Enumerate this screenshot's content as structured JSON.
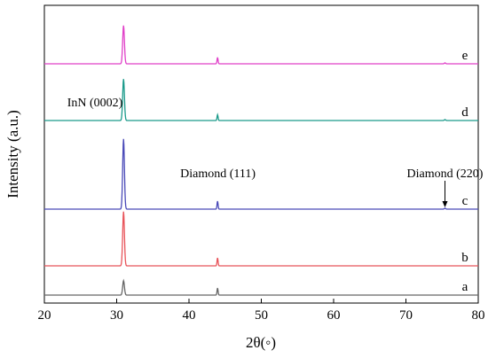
{
  "chart_data": {
    "type": "line",
    "title": "",
    "xlabel": "2θ(◦)",
    "ylabel": "Intensity (a.u.)",
    "xlim": [
      20,
      80
    ],
    "xticks": [
      20,
      30,
      40,
      50,
      60,
      70,
      80
    ],
    "xtick_labels": [
      "20",
      "30",
      "40",
      "50",
      "60",
      "70",
      "80"
    ],
    "y_ticks_shown": false,
    "grid": false,
    "legend": "none",
    "series": [
      {
        "name": "a",
        "color": "#666666",
        "peak_30_9": 0.45,
        "peak_44": 0.22,
        "peak_75_4": 0.0
      },
      {
        "name": "b",
        "color": "#e8545a",
        "peak_30_9": 1.7,
        "peak_44": 0.25,
        "peak_75_4": 0.0
      },
      {
        "name": "c",
        "color": "#4a4ab8",
        "peak_30_9": 2.2,
        "peak_44": 0.25,
        "peak_75_4": 0.03
      },
      {
        "name": "d",
        "color": "#1a9a8a",
        "peak_30_9": 1.3,
        "peak_44": 0.18,
        "peak_75_4": 0.03
      },
      {
        "name": "e",
        "color": "#e040c8",
        "peak_30_9": 1.2,
        "peak_44": 0.2,
        "peak_75_4": 0.03
      }
    ],
    "annotations": [
      {
        "text": "InN (0002)",
        "x": 27.0,
        "series": "d",
        "y": 0.45
      },
      {
        "text": "Diamond (111)",
        "x": 44.0,
        "series": "c",
        "y": 1.0
      },
      {
        "text": "Diamond (220)",
        "x": 75.4,
        "series": "c",
        "y": 1.0,
        "arrow": true
      }
    ]
  }
}
